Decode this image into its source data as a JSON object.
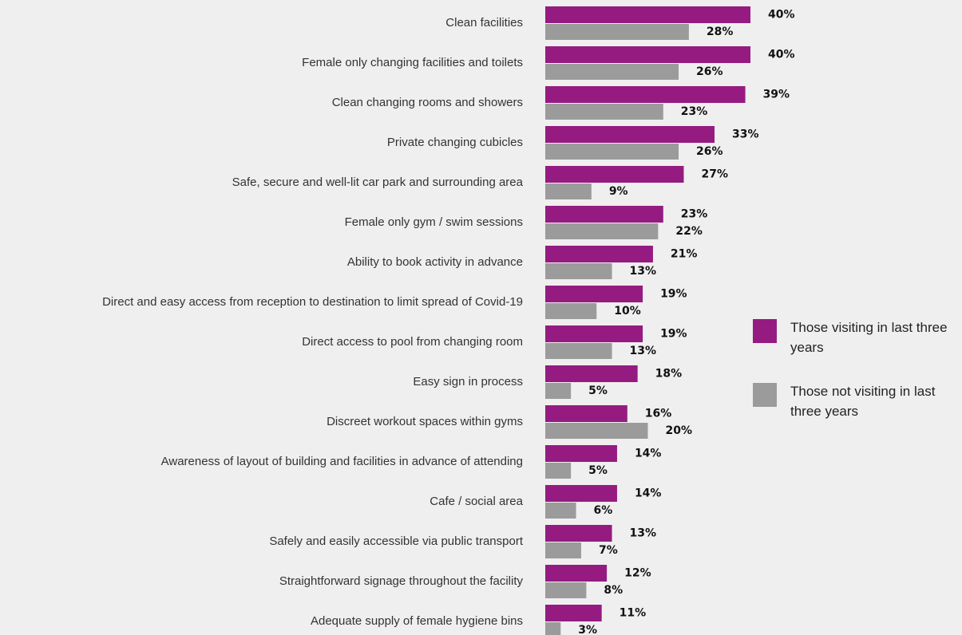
{
  "chart_data": {
    "type": "bar",
    "orientation": "horizontal",
    "categories": [
      "Clean facilities",
      "Female only changing facilities and toilets",
      "Clean changing rooms and showers",
      "Private changing cubicles",
      "Safe, secure and well-lit car park and surrounding area",
      "Female only gym / swim sessions",
      "Ability to book activity in advance",
      "Direct and easy access from reception to destination to limit spread of Covid-19",
      "Direct access to pool from changing room",
      "Easy sign in process",
      "Discreet workout spaces within gyms",
      "Awareness of layout of building and facilities in advance of attending",
      "Cafe / social area",
      "Safely and easily accessible via public transport",
      "Straightforward signage throughout the facility",
      "Adequate supply of female hygiene bins"
    ],
    "series": [
      {
        "name": "Those visiting in last three years",
        "color": "#951b81",
        "values": [
          40,
          40,
          39,
          33,
          27,
          23,
          21,
          19,
          19,
          18,
          16,
          14,
          14,
          13,
          12,
          11
        ],
        "value_labels": [
          "40%",
          "40%",
          "39%",
          "33%",
          "27%",
          "23%",
          "21%",
          "19%",
          "19%",
          "18%",
          "16%",
          "14%",
          "14%",
          "13%",
          "12%",
          "11%"
        ]
      },
      {
        "name": "Those not visiting in last three years",
        "color": "#9b9b9b",
        "values": [
          28,
          26,
          23,
          26,
          9,
          22,
          13,
          10,
          13,
          5,
          20,
          5,
          6,
          7,
          8,
          3
        ],
        "value_labels": [
          "28%",
          "26%",
          "23%",
          "26%",
          "9%",
          "22%",
          "13%",
          "10%",
          "13%",
          "5%",
          "20%",
          "5%",
          "6%",
          "7%",
          "8%",
          "3%"
        ]
      }
    ],
    "legend": "right"
  }
}
